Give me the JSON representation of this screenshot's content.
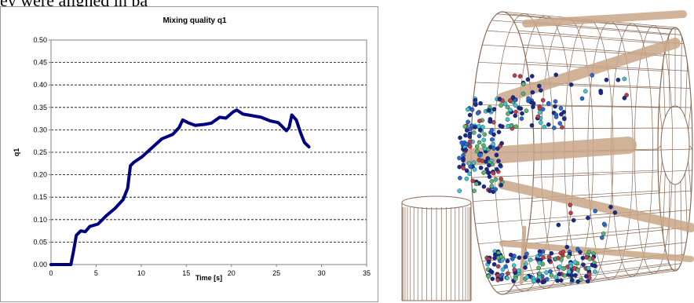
{
  "caption": "ey were aligned in pa",
  "chart_data": {
    "type": "line",
    "title": "Mixing quality q1",
    "xlabel": "Time [s]",
    "ylabel": "q1",
    "xlim": [
      0,
      35
    ],
    "ylim": [
      0,
      0.5
    ],
    "x_ticks": [
      "0",
      "5",
      "10",
      "15",
      "20",
      "25",
      "30",
      "35"
    ],
    "y_ticks": [
      "0.00",
      "0.05",
      "0.10",
      "0.15",
      "0.20",
      "0.25",
      "0.30",
      "0.35",
      "0.40",
      "0.45",
      "0.50"
    ],
    "grid": "horizontal dashed",
    "series": [
      {
        "color": "#000080",
        "x": [
          0,
          2.2,
          2.5,
          2.8,
          3.3,
          3.8,
          4.3,
          5.2,
          6.2,
          7.1,
          8.0,
          8.5,
          8.8,
          9.2,
          10.1,
          11.3,
          12.3,
          13.5,
          14.2,
          14.6,
          15.3,
          16.0,
          17.0,
          17.8,
          18.7,
          19.4,
          20.2,
          20.6,
          21.3,
          22.2,
          23.3,
          24.3,
          25.2,
          26.1,
          26.4,
          26.7,
          27.2,
          27.7,
          28.1,
          28.6
        ],
        "y": [
          0.0,
          0.0,
          0.03,
          0.065,
          0.075,
          0.073,
          0.085,
          0.09,
          0.11,
          0.125,
          0.145,
          0.17,
          0.22,
          0.228,
          0.24,
          0.262,
          0.28,
          0.29,
          0.305,
          0.322,
          0.315,
          0.31,
          0.312,
          0.315,
          0.328,
          0.326,
          0.34,
          0.344,
          0.335,
          0.332,
          0.328,
          0.32,
          0.316,
          0.298,
          0.305,
          0.333,
          0.322,
          0.292,
          0.272,
          0.262
        ]
      }
    ]
  },
  "illustration": {
    "subject": "3D wireframe mixer drum with particles",
    "colors": {
      "wire": "#8a6a55",
      "blade": "#c8a688",
      "particle_dark": "#1a2a8a",
      "particle_blue": "#2a6ad0",
      "particle_cyan": "#40c8c8",
      "particle_green": "#58b868",
      "particle_red": "#c04040"
    }
  }
}
